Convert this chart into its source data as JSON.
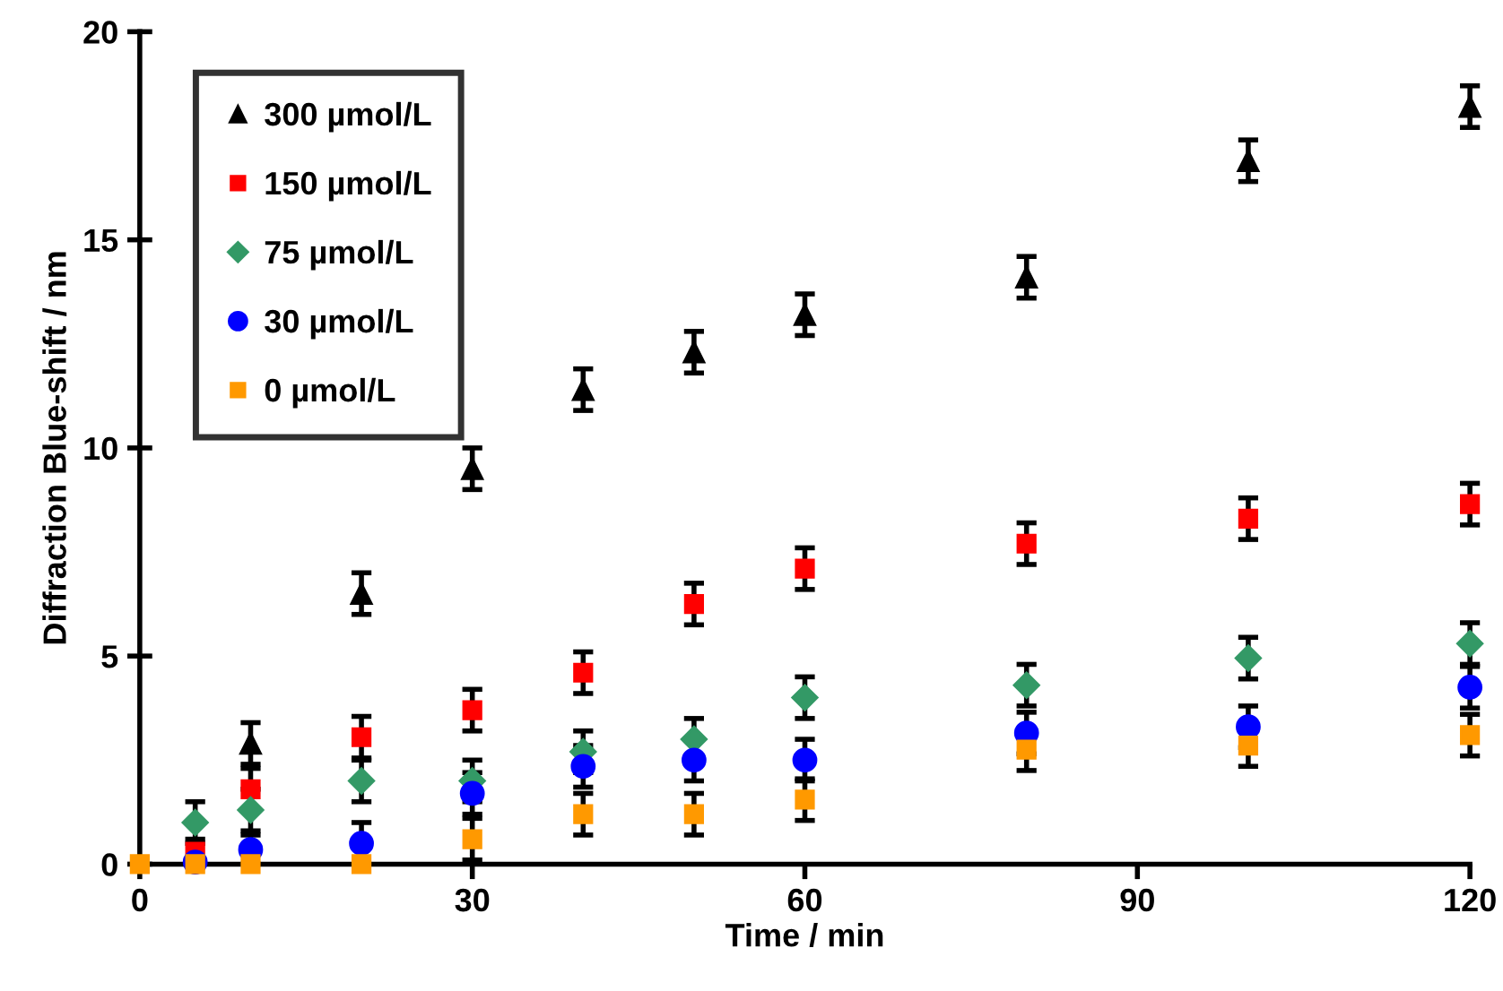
{
  "chart_data": {
    "type": "scatter",
    "xlabel": "Time / min",
    "ylabel": "Diffraction Blue-shift / nm",
    "x": [
      0,
      5,
      10,
      20,
      30,
      40,
      50,
      60,
      80,
      100,
      120
    ],
    "xlim": [
      0,
      120
    ],
    "xticks": [
      0,
      30,
      60,
      90,
      120
    ],
    "ylim": [
      0,
      20
    ],
    "yticks": [
      0,
      5,
      10,
      15,
      20
    ],
    "grid": false,
    "legend": "top left",
    "series": [
      {
        "name": "300 µmol/L",
        "color": "#000000",
        "marker": "triangle",
        "values": [
          null,
          null,
          2.9,
          6.5,
          9.5,
          11.4,
          12.3,
          13.2,
          14.1,
          16.9,
          18.2
        ],
        "errors": [
          null,
          null,
          0.5,
          0.5,
          0.5,
          0.5,
          0.5,
          0.5,
          0.5,
          0.5,
          0.5
        ]
      },
      {
        "name": "150 µmol/L",
        "color": "#ff0000",
        "marker": "square",
        "values": [
          null,
          0.3,
          1.8,
          3.05,
          3.7,
          4.6,
          6.25,
          7.1,
          7.7,
          8.3,
          8.65
        ],
        "errors": [
          null,
          0.3,
          0.5,
          0.5,
          0.5,
          0.5,
          0.5,
          0.5,
          0.5,
          0.5,
          0.5
        ]
      },
      {
        "name": "75 µmol/L",
        "color": "#339966",
        "marker": "diamond",
        "values": [
          null,
          1.0,
          1.3,
          2.0,
          2.0,
          2.7,
          3.0,
          4.0,
          4.3,
          4.95,
          5.3
        ],
        "errors": [
          null,
          0.5,
          0.5,
          0.5,
          0.5,
          0.5,
          0.5,
          0.5,
          0.5,
          0.5,
          0.5
        ]
      },
      {
        "name": "30 µmol/L",
        "color": "#0000ff",
        "marker": "circle",
        "values": [
          null,
          0.05,
          0.35,
          0.5,
          1.7,
          2.35,
          2.5,
          2.5,
          3.15,
          3.3,
          4.25
        ],
        "errors": [
          null,
          null,
          0.35,
          0.5,
          0.5,
          0.5,
          0.5,
          0.5,
          0.5,
          0.5,
          0.5
        ]
      },
      {
        "name": "0 µmol/L",
        "color": "#ff9900",
        "marker": "square",
        "values": [
          0,
          0,
          0,
          0,
          0.6,
          1.2,
          1.2,
          1.55,
          2.75,
          2.85,
          3.1
        ],
        "errors": [
          null,
          null,
          null,
          null,
          0.5,
          0.5,
          0.5,
          0.5,
          0.5,
          0.5,
          0.5
        ]
      }
    ]
  }
}
